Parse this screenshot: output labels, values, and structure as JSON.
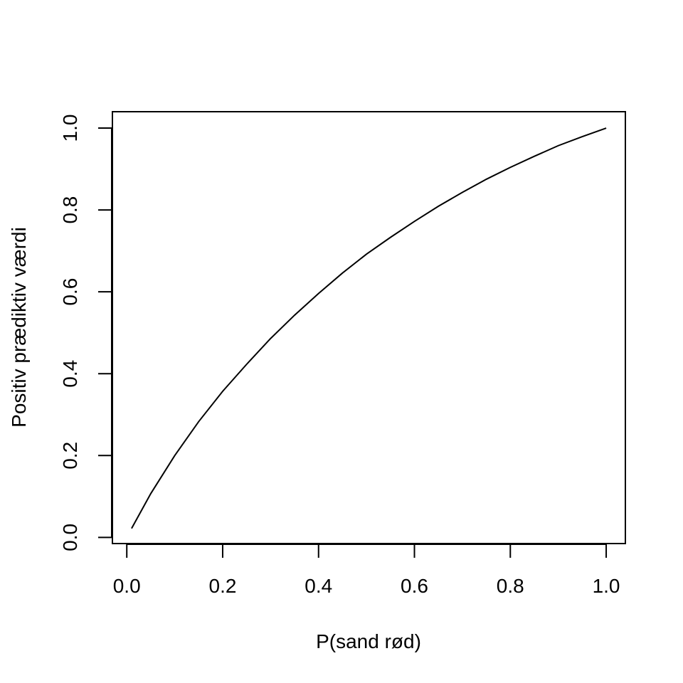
{
  "chart_data": {
    "type": "line",
    "title": "",
    "xlabel": "P(sand rød)",
    "ylabel": "Positiv prædiktiv værdi",
    "xlim": [
      -0.03,
      1.04
    ],
    "ylim": [
      -0.015,
      1.04
    ],
    "x_ticks": [
      0.0,
      0.2,
      0.4,
      0.6,
      0.8,
      1.0
    ],
    "x_tick_labels": [
      "0.0",
      "0.2",
      "0.4",
      "0.6",
      "0.8",
      "1.0"
    ],
    "y_ticks": [
      0.0,
      0.2,
      0.4,
      0.6,
      0.8,
      1.0
    ],
    "y_tick_labels": [
      "0.0",
      "0.2",
      "0.4",
      "0.6",
      "0.8",
      "1.0"
    ],
    "grid": false,
    "legend": "none",
    "line_color": "#000000",
    "series": [
      {
        "x": [
          0.01,
          0.05,
          0.1,
          0.15,
          0.2,
          0.25,
          0.3,
          0.35,
          0.4,
          0.45,
          0.5,
          0.55,
          0.6,
          0.65,
          0.7,
          0.75,
          0.8,
          0.85,
          0.9,
          0.95,
          1.0
        ],
        "values": [
          0.022,
          0.107,
          0.2,
          0.283,
          0.357,
          0.423,
          0.486,
          0.543,
          0.596,
          0.646,
          0.692,
          0.733,
          0.772,
          0.809,
          0.843,
          0.875,
          0.904,
          0.931,
          0.957,
          0.979,
          1.0
        ]
      }
    ]
  }
}
